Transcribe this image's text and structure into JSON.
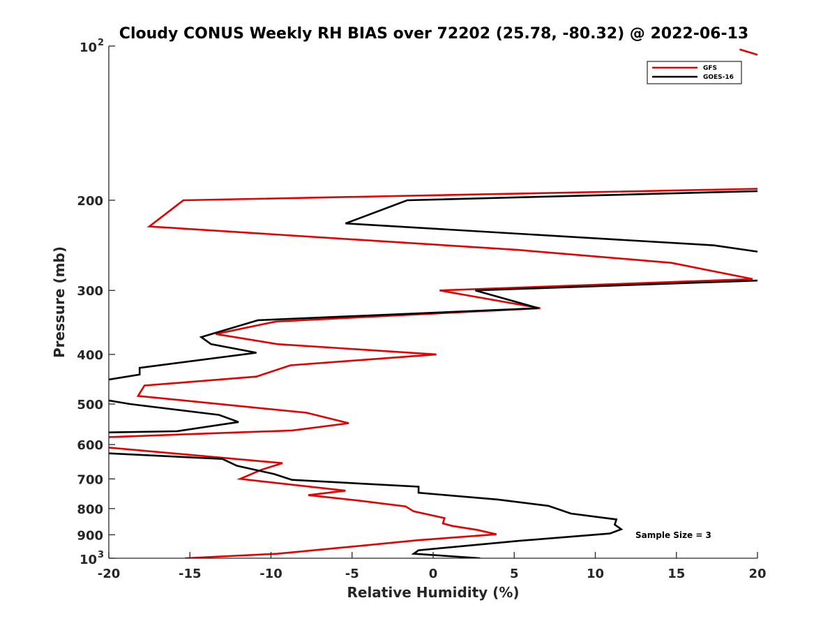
{
  "chart_data": {
    "type": "line",
    "title": "Cloudy CONUS Weekly RH BIAS over 72202 (25.78, -80.32) @ 2022-06-13",
    "xlabel": "Relative Humidity (%)",
    "ylabel": "Pressure (mb)",
    "xlim": [
      -20,
      20
    ],
    "ylim": [
      100,
      1000
    ],
    "y_scale": "log",
    "y_reversed": true,
    "grid": false,
    "legend_position": "top-right",
    "x_ticks": [
      "-20",
      "-15",
      "-10",
      "-5",
      "0",
      "5",
      "10",
      "15",
      "20"
    ],
    "y_ticks": [
      {
        "value": 100,
        "base": "10",
        "exp": "2"
      },
      {
        "value": 200,
        "label": "200"
      },
      {
        "value": 300,
        "label": "300"
      },
      {
        "value": 400,
        "label": "400"
      },
      {
        "value": 500,
        "label": "500"
      },
      {
        "value": 600,
        "label": "600"
      },
      {
        "value": 700,
        "label": "700"
      },
      {
        "value": 800,
        "label": "800"
      },
      {
        "value": 900,
        "label": "900"
      },
      {
        "value": 1000,
        "base": "10",
        "exp": "3"
      }
    ],
    "annotation": "Sample Size = 3",
    "series": [
      {
        "name": "GFS",
        "color": "#e60000",
        "segments": [
          [
            [
              18.9,
              101.5
            ],
            [
              20.0,
              104.0
            ]
          ],
          [
            [
              20.0,
              190
            ],
            [
              -15.4,
              200
            ],
            [
              -17.5,
              225
            ],
            [
              5.2,
              250
            ],
            [
              14.7,
              265
            ],
            [
              19.7,
              285
            ],
            [
              0.4,
              300
            ],
            [
              6.6,
              325
            ],
            [
              -9.7,
              345
            ],
            [
              -13.4,
              365
            ],
            [
              -9.6,
              382
            ],
            [
              0.2,
              400
            ],
            [
              -8.8,
              420
            ],
            [
              -10.9,
              442
            ],
            [
              -17.8,
              460
            ],
            [
              -18.2,
              482
            ],
            [
              -7.8,
              520
            ],
            [
              -5.2,
              545
            ],
            [
              -8.7,
              563
            ],
            [
              -20.0,
              580
            ]
          ],
          [
            [
              -20.0,
              608
            ],
            [
              -9.3,
              652
            ],
            [
              -10.6,
              672
            ],
            [
              -11.9,
              700
            ],
            [
              -5.4,
              738
            ],
            [
              -7.7,
              753
            ],
            [
              -4.4,
              773
            ],
            [
              -1.7,
              792
            ],
            [
              -1.2,
              810
            ],
            [
              0.7,
              835
            ],
            [
              0.6,
              855
            ],
            [
              1.2,
              865
            ],
            [
              2.7,
              880
            ],
            [
              3.9,
              898
            ],
            [
              -0.9,
              922
            ],
            [
              -5.1,
              950
            ],
            [
              -9.6,
              980
            ],
            [
              -15.3,
              1000
            ]
          ]
        ]
      },
      {
        "name": "GOES-16",
        "color": "#000000",
        "segments": [
          [
            [
              20.0,
              192
            ],
            [
              -1.6,
              200
            ],
            [
              -5.4,
              222
            ],
            [
              17.3,
              245
            ],
            [
              20.0,
              252
            ]
          ],
          [
            [
              20.0,
              287
            ],
            [
              2.6,
              300
            ],
            [
              6.5,
              325
            ],
            [
              -10.8,
              343
            ],
            [
              -14.3,
              370
            ],
            [
              -13.7,
              382
            ],
            [
              -10.9,
              397
            ],
            [
              -18.1,
              425
            ],
            [
              -18.1,
              438
            ],
            [
              -20.0,
              448
            ]
          ],
          [
            [
              -20.0,
              492
            ],
            [
              -18.7,
              500
            ],
            [
              -13.2,
              525
            ],
            [
              -12.0,
              542
            ],
            [
              -15.8,
              565
            ],
            [
              -20.0,
              568
            ]
          ],
          [
            [
              -20.0,
              624
            ],
            [
              -13.0,
              640
            ],
            [
              -12.1,
              660
            ],
            [
              -9.8,
              685
            ],
            [
              -8.7,
              703
            ],
            [
              -0.9,
              725
            ],
            [
              -0.9,
              745
            ],
            [
              4.0,
              768
            ],
            [
              7.1,
              790
            ],
            [
              8.5,
              818
            ],
            [
              11.3,
              840
            ],
            [
              11.2,
              860
            ],
            [
              11.6,
              878
            ],
            [
              10.9,
              895
            ],
            [
              5.3,
              925
            ],
            [
              -0.9,
              965
            ],
            [
              -1.2,
              980
            ],
            [
              2.9,
              1000
            ]
          ]
        ]
      }
    ]
  }
}
